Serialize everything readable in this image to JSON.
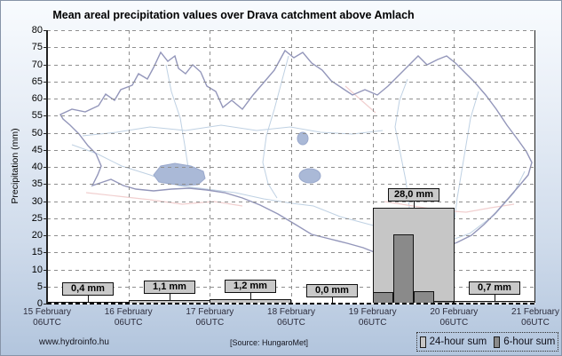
{
  "title": "Mean areal precipitation values over Drava catchment above Amlach",
  "y_axis": {
    "label": "Precipitation (mm)",
    "min": 0,
    "max": 80,
    "step": 5
  },
  "x_axis": {
    "tick_labels": [
      {
        "date": "15 February",
        "time": "06UTC"
      },
      {
        "date": "16 February",
        "time": "06UTC"
      },
      {
        "date": "17 February",
        "time": "06UTC"
      },
      {
        "date": "18 February",
        "time": "06UTC"
      },
      {
        "date": "19 February",
        "time": "06UTC"
      },
      {
        "date": "20 February",
        "time": "06UTC"
      },
      {
        "date": "21 February",
        "time": "06UTC"
      }
    ]
  },
  "chart_data": {
    "type": "bar",
    "title": "Mean areal precipitation values over Drava catchment above Amlach",
    "xlabel": "",
    "ylabel": "Precipitation (mm)",
    "ylim": [
      0,
      80
    ],
    "y_tick_step": 5,
    "grid": true,
    "legend_position": "bottom-right",
    "categories": [
      "15 February 06UTC",
      "16 February 06UTC",
      "17 February 06UTC",
      "18 February 06UTC",
      "19 February 06UTC",
      "20 February 06UTC",
      "21 February 06UTC"
    ],
    "series": [
      {
        "name": "24-hour sum",
        "color": "#c6c6c6",
        "values": [
          0.4,
          1.1,
          1.2,
          0.0,
          28.0,
          0.7
        ],
        "value_labels": [
          "0,4 mm",
          "1,1 mm",
          "1,2 mm",
          "0,0 mm",
          "28,0 mm",
          "0,7 mm"
        ]
      },
      {
        "name": "6-hour sum",
        "color": "#8a8a8a",
        "values_per_day": [
          [],
          [],
          [],
          [],
          [
            3.4,
            20.3,
            3.6,
            0.7
          ],
          []
        ]
      }
    ]
  },
  "legend": {
    "items": [
      {
        "label": "24-hour sum",
        "color": "#c6c6c6"
      },
      {
        "label": "6-hour sum",
        "color": "#8a8a8a"
      }
    ]
  },
  "footer": {
    "site": "www.hydroinfo.hu",
    "source": "[Source: HungaroMet]"
  },
  "colors": {
    "bar_24h": "#c6c6c6",
    "bar_6h": "#8a8a8a",
    "grid": "#8f8f8f",
    "map_boundary": "#9396ba",
    "map_river": "#bfd1e3",
    "map_road": "#f1cfcf",
    "map_lake": "#aab9d7"
  }
}
